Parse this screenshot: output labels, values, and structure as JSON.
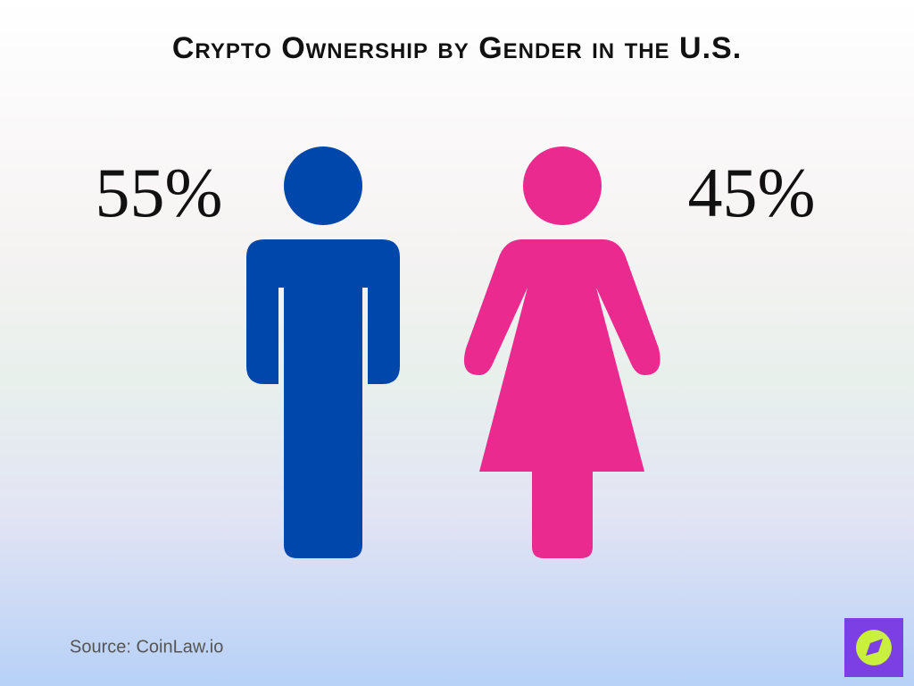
{
  "chart_data": {
    "type": "pictogram",
    "title": "Crypto Ownership by Gender in the U.S.",
    "categories": [
      null,
      null
    ],
    "values": [
      55,
      45
    ],
    "value_labels": [
      "55%",
      "45%"
    ],
    "colors": [
      "#0047ab",
      "#ea2a8e"
    ],
    "source": "Source: CoinLaw.io"
  }
}
